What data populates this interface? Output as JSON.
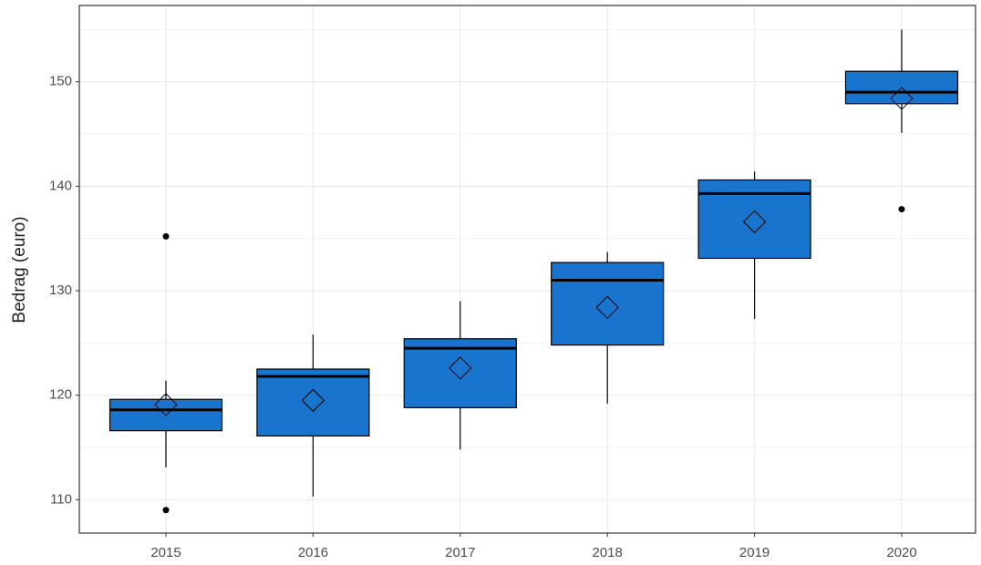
{
  "chart_data": {
    "type": "box",
    "y_label": "Bedrag (euro)",
    "categories": [
      "2015",
      "2016",
      "2017",
      "2018",
      "2019",
      "2020"
    ],
    "color": "#1874cd",
    "boxes": [
      {
        "min": 113.1,
        "q1": 116.6,
        "median": 118.6,
        "q3": 119.6,
        "max": 121.4,
        "mean": 119.1,
        "outliers": [
          135.2,
          109.0
        ]
      },
      {
        "min": 110.3,
        "q1": 116.1,
        "median": 121.8,
        "q3": 122.5,
        "max": 125.8,
        "mean": 119.5,
        "outliers": []
      },
      {
        "min": 114.8,
        "q1": 118.8,
        "median": 124.5,
        "q3": 125.4,
        "max": 129.0,
        "mean": 122.6,
        "outliers": []
      },
      {
        "min": 119.2,
        "q1": 124.8,
        "median": 131.0,
        "q3": 132.7,
        "max": 133.7,
        "mean": 128.4,
        "outliers": []
      },
      {
        "min": 127.3,
        "q1": 133.1,
        "median": 139.3,
        "q3": 140.6,
        "max": 141.4,
        "mean": 136.6,
        "outliers": []
      },
      {
        "min": 145.1,
        "q1": 147.9,
        "median": 149.0,
        "q3": 151.0,
        "max": 155.0,
        "mean": 148.4,
        "outliers": [
          137.8
        ]
      }
    ],
    "ylim": [
      106.8,
      157.3
    ],
    "yticks": [
      110,
      120,
      130,
      140,
      150
    ],
    "grid": true
  }
}
